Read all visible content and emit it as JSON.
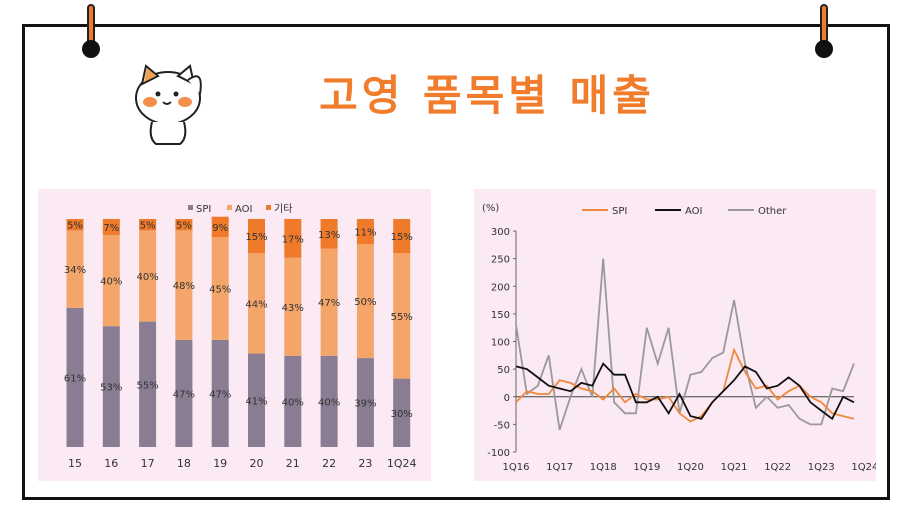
{
  "title": "고영 품목별 매출",
  "mascot_icon": "cat-saluting-icon",
  "colors": {
    "accent": "#f07c2c",
    "spi": "#8a7c92",
    "aoi": "#f4a66a",
    "other": "#ee7a2a",
    "line_spi": "#ef8a3c",
    "line_aoi": "#111111",
    "line_other": "#9a9a9a",
    "panel_bg": "#fbe9f3"
  },
  "chart_data": [
    {
      "type": "bar",
      "stacked": true,
      "categories": [
        "15",
        "16",
        "17",
        "18",
        "19",
        "20",
        "21",
        "22",
        "23",
        "1Q24"
      ],
      "series": [
        {
          "name": "SPI",
          "values": [
            61,
            53,
            55,
            47,
            47,
            41,
            40,
            40,
            39,
            30
          ]
        },
        {
          "name": "AOI",
          "values": [
            34,
            40,
            40,
            48,
            45,
            44,
            43,
            47,
            50,
            55
          ]
        },
        {
          "name": "기타",
          "values": [
            5,
            7,
            5,
            5,
            9,
            15,
            17,
            13,
            11,
            15
          ]
        }
      ],
      "legend_position": "top",
      "data_label_suffix": "%",
      "ylim": [
        0,
        100
      ]
    },
    {
      "type": "line",
      "ylabel": "(%)",
      "ylim": [
        -100,
        300
      ],
      "yticks": [
        -100,
        -50,
        0,
        50,
        100,
        150,
        200,
        250,
        300
      ],
      "x_tick_labels": [
        "1Q16",
        "1Q17",
        "1Q18",
        "1Q19",
        "1Q20",
        "1Q21",
        "1Q22",
        "1Q23",
        "1Q24"
      ],
      "legend_position": "top",
      "series": [
        {
          "name": "SPI",
          "values": [
            -10,
            10,
            5,
            5,
            30,
            25,
            15,
            10,
            -5,
            15,
            -10,
            5,
            -5,
            -5,
            0,
            -30,
            -45,
            -35,
            -10,
            10,
            85,
            45,
            15,
            20,
            -5,
            10,
            20,
            0,
            -10,
            -30,
            -35,
            -40
          ]
        },
        {
          "name": "AOI",
          "values": [
            55,
            50,
            35,
            20,
            15,
            10,
            25,
            20,
            60,
            40,
            40,
            -10,
            -10,
            0,
            -30,
            5,
            -35,
            -40,
            -10,
            10,
            30,
            55,
            45,
            15,
            20,
            35,
            20,
            -10,
            -25,
            -40,
            0,
            -10
          ]
        },
        {
          "name": "Other",
          "values": [
            130,
            5,
            20,
            75,
            -60,
            0,
            50,
            0,
            250,
            -10,
            -30,
            -30,
            125,
            60,
            125,
            -30,
            40,
            45,
            70,
            80,
            175,
            60,
            -20,
            0,
            -20,
            -15,
            -40,
            -50,
            -50,
            15,
            10,
            60
          ]
        }
      ]
    }
  ]
}
